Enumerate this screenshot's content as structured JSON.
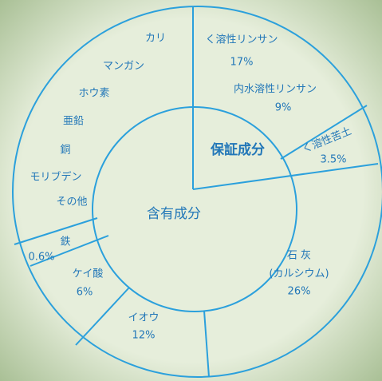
{
  "inner": {
    "left": "含有成分",
    "right": "保証成分"
  },
  "contained": [
    "カリ",
    "マンガン",
    "ホウ素",
    "亜鉛",
    "銅",
    "モリブデン",
    "その他"
  ],
  "segments": [
    {
      "name": "く溶性リンサン",
      "value": "17%"
    },
    {
      "name": "内水溶性リンサン",
      "value": "9%"
    },
    {
      "name": "く溶性苦土",
      "value": "3.5%"
    },
    {
      "name": "石 灰",
      "sub": "(カルシウム)",
      "value": "26%"
    },
    {
      "name": "イオウ",
      "value": "12%"
    },
    {
      "name": "ケイ酸",
      "value": "6%"
    },
    {
      "name": "鉄",
      "value": "0.6%"
    }
  ]
}
